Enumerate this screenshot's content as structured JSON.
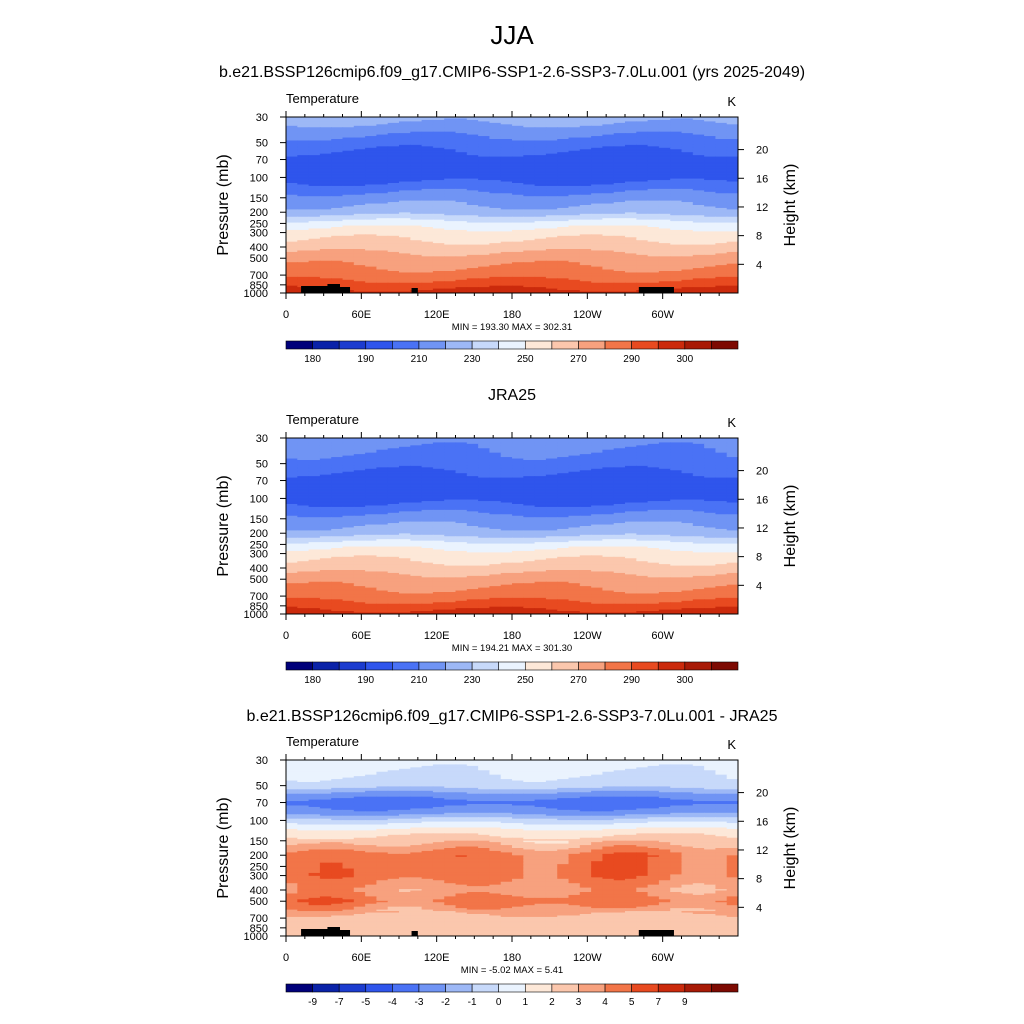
{
  "page": {
    "title": "JJA",
    "subtitle_top": "b.e21.BSSP126cmip6.f09_g17.CMIP6-SSP1-2.6-SSP3-7.0Lu.001 (yrs 2025-2049)",
    "subtitle_middle": "JRA25",
    "subtitle_bottom": "b.e21.BSSP126cmip6.f09_g17.CMIP6-SSP1-2.6-SSP3-7.0Lu.001 - JRA25"
  },
  "chart_data": [
    {
      "type": "heatmap",
      "panel_label": "Temperature",
      "units": "K",
      "ylabel": "Pressure (mb)",
      "y2label": "Height (km)",
      "x_ticks": [
        "0",
        "60E",
        "120E",
        "180",
        "120W",
        "60W"
      ],
      "y_ticks": [
        30,
        50,
        70,
        100,
        150,
        200,
        250,
        300,
        400,
        500,
        700,
        850,
        1000
      ],
      "height_ticks": [
        4,
        8,
        12,
        16,
        20
      ],
      "stats": "MIN = 193.30  MAX = 302.31",
      "colorbar_labels": [
        "180",
        "190",
        "210",
        "230",
        "250",
        "270",
        "290",
        "300"
      ],
      "colorbar_colors": [
        "#00007a",
        "#0a22a8",
        "#1c3ccf",
        "#2f55ec",
        "#4a72f5",
        "#7094f4",
        "#9db8f6",
        "#c7d9fa",
        "#eaf3fe",
        "#fde8d8",
        "#fbc7ad",
        "#f7a17e",
        "#f27548",
        "#e84a20",
        "#cb2a0c",
        "#a81a06",
        "#7d0a02"
      ],
      "profile": [
        [
          30,
          6
        ],
        [
          50,
          4
        ],
        [
          70,
          3
        ],
        [
          100,
          3
        ],
        [
          150,
          5
        ],
        [
          200,
          6
        ],
        [
          250,
          8
        ],
        [
          300,
          9
        ],
        [
          400,
          10
        ],
        [
          500,
          11
        ],
        [
          700,
          12
        ],
        [
          850,
          13
        ],
        [
          1000,
          14
        ]
      ],
      "topography": true
    },
    {
      "type": "heatmap",
      "panel_label": "Temperature",
      "units": "K",
      "ylabel": "Pressure (mb)",
      "y2label": "Height (km)",
      "x_ticks": [
        "0",
        "60E",
        "120E",
        "180",
        "120W",
        "60W"
      ],
      "y_ticks": [
        30,
        50,
        70,
        100,
        150,
        200,
        250,
        300,
        400,
        500,
        700,
        850,
        1000
      ],
      "height_ticks": [
        4,
        8,
        12,
        16,
        20
      ],
      "stats": "MIN = 194.21  MAX = 301.30",
      "colorbar_labels": [
        "180",
        "190",
        "210",
        "230",
        "250",
        "270",
        "290",
        "300"
      ],
      "colorbar_colors": [
        "#00007a",
        "#0a22a8",
        "#1c3ccf",
        "#2f55ec",
        "#4a72f5",
        "#7094f4",
        "#9db8f6",
        "#c7d9fa",
        "#eaf3fe",
        "#fde8d8",
        "#fbc7ad",
        "#f7a17e",
        "#f27548",
        "#e84a20",
        "#cb2a0c",
        "#a81a06",
        "#7d0a02"
      ],
      "profile": [
        [
          30,
          5
        ],
        [
          50,
          4
        ],
        [
          70,
          3
        ],
        [
          100,
          3
        ],
        [
          150,
          5
        ],
        [
          200,
          6
        ],
        [
          250,
          8
        ],
        [
          300,
          9
        ],
        [
          400,
          10
        ],
        [
          500,
          11
        ],
        [
          700,
          12
        ],
        [
          850,
          13
        ],
        [
          1000,
          14
        ]
      ],
      "topography": false
    },
    {
      "type": "heatmap",
      "panel_label": "Temperature",
      "units": "K",
      "ylabel": "Pressure (mb)",
      "y2label": "Height (km)",
      "x_ticks": [
        "0",
        "60E",
        "120E",
        "180",
        "120W",
        "60W"
      ],
      "y_ticks": [
        30,
        50,
        70,
        100,
        150,
        200,
        250,
        300,
        400,
        500,
        700,
        850,
        1000
      ],
      "height_ticks": [
        4,
        8,
        12,
        16,
        20
      ],
      "stats": "MIN =  -5.02  MAX =   5.41",
      "colorbar_labels": [
        "-9",
        "-7",
        "-5",
        "-4",
        "-3",
        "-2",
        "-1",
        "0",
        "1",
        "2",
        "3",
        "4",
        "5",
        "7",
        "9"
      ],
      "colorbar_colors": [
        "#00007a",
        "#0a22a8",
        "#1c3ccf",
        "#2f55ec",
        "#4a72f5",
        "#7094f4",
        "#9db8f6",
        "#c7d9fa",
        "#eaf3fe",
        "#fde8d8",
        "#fbc7ad",
        "#f7a17e",
        "#f27548",
        "#e84a20",
        "#cb2a0c",
        "#a81a06",
        "#7d0a02"
      ],
      "profile": [
        [
          30,
          8
        ],
        [
          50,
          7
        ],
        [
          60,
          5
        ],
        [
          70,
          4
        ],
        [
          85,
          5
        ],
        [
          100,
          7
        ],
        [
          125,
          9
        ],
        [
          150,
          10
        ],
        [
          200,
          12
        ],
        [
          300,
          12
        ],
        [
          400,
          11
        ],
        [
          500,
          12
        ],
        [
          700,
          10
        ],
        [
          850,
          10
        ],
        [
          1000,
          10
        ]
      ],
      "topography": true
    }
  ]
}
